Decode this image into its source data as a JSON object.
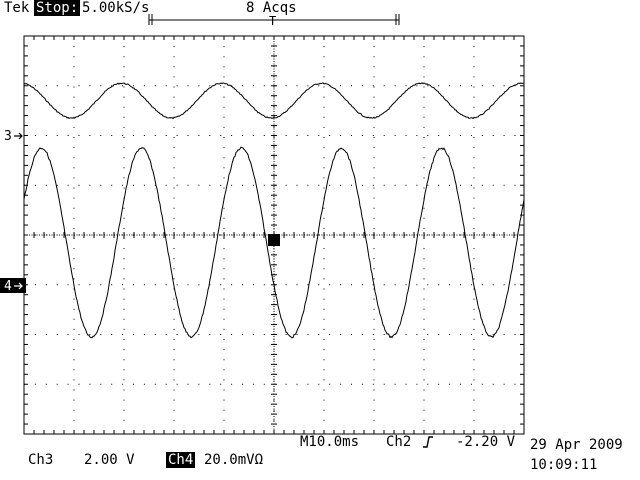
{
  "header": {
    "brand": "Tek",
    "run_state": "Stop:",
    "sample_rate": "5.00kS/s",
    "acquisitions": "8 Acqs"
  },
  "channels": {
    "ch3_marker": "3",
    "ch4_marker": "4",
    "ch3_label": "Ch3",
    "ch3_scale": "2.00 V",
    "ch4_label": "Ch4",
    "ch4_scale": "20.0mVΩ"
  },
  "timebase": {
    "main": "M10.0ms",
    "trigger_source": "Ch2",
    "trigger_slope_icon": "rising-edge-icon",
    "trigger_level": "-2.20 V"
  },
  "datetime": {
    "date": "29 Apr 2009",
    "time": "10:09:11"
  },
  "trigger_marker": "T",
  "colors": {
    "trace": "#000000",
    "background": "#ffffff"
  },
  "chart_data": {
    "type": "line",
    "title": "",
    "grid": true,
    "divisions": {
      "x": 10,
      "y": 8
    },
    "series": [
      {
        "channel": "Ch3",
        "shape": "sine",
        "cycles_on_screen": 5,
        "amplitude_div": 0.35,
        "center_div": 2.7
      },
      {
        "channel": "Ch4",
        "shape": "sine",
        "cycles_on_screen": 5,
        "amplitude_div": 1.9,
        "center_div": -0.15
      }
    ]
  }
}
